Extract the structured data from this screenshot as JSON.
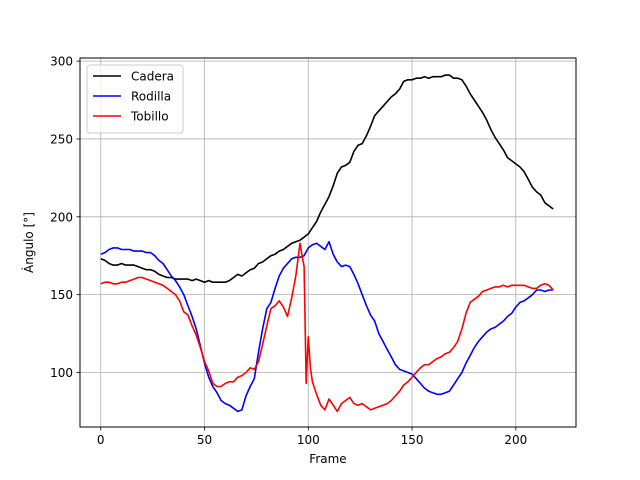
{
  "chart_data": {
    "type": "line",
    "title": "",
    "xlabel": "Frame",
    "ylabel": "Ángulo [°]",
    "xlim": [
      -10,
      229
    ],
    "ylim": [
      65,
      302
    ],
    "xticks": [
      0,
      50,
      100,
      150,
      200
    ],
    "yticks": [
      100,
      150,
      200,
      250,
      300
    ],
    "grid": true,
    "legend_position": "top-left",
    "series": [
      {
        "name": "Cadera",
        "color": "#000000",
        "points": [
          [
            0,
            173
          ],
          [
            2,
            172
          ],
          [
            4,
            170
          ],
          [
            6,
            169
          ],
          [
            8,
            169
          ],
          [
            10,
            170
          ],
          [
            12,
            169
          ],
          [
            14,
            169
          ],
          [
            16,
            169
          ],
          [
            18,
            168
          ],
          [
            20,
            167
          ],
          [
            22,
            166
          ],
          [
            24,
            166
          ],
          [
            26,
            165
          ],
          [
            28,
            163
          ],
          [
            30,
            162
          ],
          [
            32,
            161
          ],
          [
            34,
            161
          ],
          [
            36,
            160
          ],
          [
            38,
            160
          ],
          [
            40,
            160
          ],
          [
            42,
            160
          ],
          [
            44,
            159
          ],
          [
            46,
            160
          ],
          [
            48,
            159
          ],
          [
            50,
            158
          ],
          [
            52,
            159
          ],
          [
            54,
            158
          ],
          [
            56,
            158
          ],
          [
            58,
            158
          ],
          [
            60,
            158
          ],
          [
            62,
            159
          ],
          [
            64,
            161
          ],
          [
            66,
            163
          ],
          [
            68,
            162
          ],
          [
            70,
            164
          ],
          [
            72,
            166
          ],
          [
            74,
            167
          ],
          [
            76,
            170
          ],
          [
            78,
            171
          ],
          [
            80,
            173
          ],
          [
            82,
            175
          ],
          [
            84,
            176
          ],
          [
            86,
            178
          ],
          [
            88,
            179
          ],
          [
            90,
            181
          ],
          [
            92,
            183
          ],
          [
            94,
            184
          ],
          [
            96,
            185
          ],
          [
            98,
            187
          ],
          [
            100,
            189
          ],
          [
            102,
            193
          ],
          [
            104,
            197
          ],
          [
            106,
            203
          ],
          [
            108,
            208
          ],
          [
            110,
            213
          ],
          [
            112,
            220
          ],
          [
            114,
            228
          ],
          [
            116,
            232
          ],
          [
            118,
            233
          ],
          [
            120,
            235
          ],
          [
            122,
            242
          ],
          [
            124,
            246
          ],
          [
            126,
            247
          ],
          [
            128,
            252
          ],
          [
            130,
            258
          ],
          [
            132,
            265
          ],
          [
            134,
            268
          ],
          [
            136,
            271
          ],
          [
            138,
            274
          ],
          [
            140,
            277
          ],
          [
            142,
            279
          ],
          [
            144,
            282
          ],
          [
            146,
            287
          ],
          [
            148,
            288
          ],
          [
            150,
            288
          ],
          [
            152,
            289
          ],
          [
            154,
            289
          ],
          [
            156,
            290
          ],
          [
            158,
            289
          ],
          [
            160,
            290
          ],
          [
            162,
            290
          ],
          [
            164,
            290
          ],
          [
            166,
            291
          ],
          [
            168,
            291
          ],
          [
            170,
            289
          ],
          [
            172,
            289
          ],
          [
            174,
            288
          ],
          [
            176,
            284
          ],
          [
            178,
            279
          ],
          [
            180,
            275
          ],
          [
            182,
            271
          ],
          [
            184,
            267
          ],
          [
            186,
            262
          ],
          [
            188,
            256
          ],
          [
            190,
            251
          ],
          [
            192,
            247
          ],
          [
            194,
            243
          ],
          [
            196,
            238
          ],
          [
            198,
            236
          ],
          [
            200,
            234
          ],
          [
            202,
            232
          ],
          [
            204,
            229
          ],
          [
            206,
            224
          ],
          [
            208,
            219
          ],
          [
            210,
            216
          ],
          [
            212,
            214
          ],
          [
            214,
            209
          ],
          [
            216,
            207
          ],
          [
            218,
            205
          ]
        ]
      },
      {
        "name": "Rodilla",
        "color": "#0000ff",
        "points": [
          [
            0,
            176
          ],
          [
            2,
            177
          ],
          [
            4,
            179
          ],
          [
            6,
            180
          ],
          [
            8,
            180
          ],
          [
            10,
            179
          ],
          [
            12,
            179
          ],
          [
            14,
            179
          ],
          [
            16,
            178
          ],
          [
            18,
            178
          ],
          [
            20,
            178
          ],
          [
            22,
            177
          ],
          [
            24,
            177
          ],
          [
            26,
            175
          ],
          [
            28,
            172
          ],
          [
            30,
            170
          ],
          [
            32,
            166
          ],
          [
            34,
            162
          ],
          [
            36,
            159
          ],
          [
            38,
            155
          ],
          [
            40,
            150
          ],
          [
            42,
            143
          ],
          [
            44,
            136
          ],
          [
            46,
            128
          ],
          [
            48,
            117
          ],
          [
            50,
            106
          ],
          [
            52,
            97
          ],
          [
            54,
            91
          ],
          [
            56,
            87
          ],
          [
            58,
            82
          ],
          [
            60,
            80
          ],
          [
            62,
            79
          ],
          [
            64,
            77
          ],
          [
            66,
            75
          ],
          [
            68,
            76
          ],
          [
            70,
            85
          ],
          [
            72,
            91
          ],
          [
            74,
            96
          ],
          [
            76,
            113
          ],
          [
            78,
            128
          ],
          [
            80,
            141
          ],
          [
            82,
            145
          ],
          [
            84,
            154
          ],
          [
            86,
            162
          ],
          [
            88,
            167
          ],
          [
            90,
            170
          ],
          [
            92,
            173
          ],
          [
            94,
            174
          ],
          [
            96,
            174
          ],
          [
            98,
            175
          ],
          [
            100,
            180
          ],
          [
            102,
            182
          ],
          [
            104,
            183
          ],
          [
            106,
            181
          ],
          [
            108,
            179
          ],
          [
            110,
            184
          ],
          [
            112,
            176
          ],
          [
            114,
            171
          ],
          [
            116,
            168
          ],
          [
            118,
            169
          ],
          [
            120,
            168
          ],
          [
            122,
            163
          ],
          [
            124,
            157
          ],
          [
            126,
            150
          ],
          [
            128,
            143
          ],
          [
            130,
            137
          ],
          [
            132,
            133
          ],
          [
            134,
            125
          ],
          [
            136,
            120
          ],
          [
            138,
            115
          ],
          [
            140,
            110
          ],
          [
            142,
            105
          ],
          [
            144,
            102
          ],
          [
            146,
            101
          ],
          [
            148,
            100
          ],
          [
            150,
            99
          ],
          [
            152,
            96
          ],
          [
            154,
            93
          ],
          [
            156,
            90
          ],
          [
            158,
            88
          ],
          [
            160,
            87
          ],
          [
            162,
            86
          ],
          [
            164,
            86
          ],
          [
            166,
            87
          ],
          [
            168,
            88
          ],
          [
            170,
            92
          ],
          [
            172,
            96
          ],
          [
            174,
            100
          ],
          [
            176,
            106
          ],
          [
            178,
            111
          ],
          [
            180,
            116
          ],
          [
            182,
            120
          ],
          [
            184,
            123
          ],
          [
            186,
            126
          ],
          [
            188,
            128
          ],
          [
            190,
            129
          ],
          [
            192,
            131
          ],
          [
            194,
            133
          ],
          [
            196,
            136
          ],
          [
            198,
            138
          ],
          [
            200,
            142
          ],
          [
            202,
            145
          ],
          [
            204,
            146
          ],
          [
            206,
            148
          ],
          [
            208,
            150
          ],
          [
            210,
            153
          ],
          [
            212,
            153
          ],
          [
            214,
            152
          ],
          [
            216,
            153
          ],
          [
            218,
            153
          ]
        ]
      },
      {
        "name": "Tobillo",
        "color": "#ff0000",
        "points": [
          [
            0,
            157
          ],
          [
            2,
            158
          ],
          [
            4,
            158
          ],
          [
            6,
            157
          ],
          [
            8,
            157
          ],
          [
            10,
            158
          ],
          [
            12,
            158
          ],
          [
            14,
            159
          ],
          [
            16,
            160
          ],
          [
            18,
            161
          ],
          [
            20,
            161
          ],
          [
            22,
            160
          ],
          [
            24,
            159
          ],
          [
            26,
            158
          ],
          [
            28,
            157
          ],
          [
            30,
            156
          ],
          [
            32,
            154
          ],
          [
            34,
            152
          ],
          [
            36,
            150
          ],
          [
            38,
            146
          ],
          [
            40,
            139
          ],
          [
            42,
            137
          ],
          [
            44,
            130
          ],
          [
            46,
            124
          ],
          [
            48,
            116
          ],
          [
            50,
            107
          ],
          [
            52,
            101
          ],
          [
            54,
            93
          ],
          [
            56,
            91
          ],
          [
            58,
            91
          ],
          [
            60,
            93
          ],
          [
            62,
            94
          ],
          [
            64,
            94
          ],
          [
            66,
            97
          ],
          [
            68,
            98
          ],
          [
            70,
            100
          ],
          [
            72,
            103
          ],
          [
            74,
            102
          ],
          [
            76,
            107
          ],
          [
            78,
            118
          ],
          [
            80,
            130
          ],
          [
            82,
            141
          ],
          [
            84,
            143
          ],
          [
            86,
            146
          ],
          [
            88,
            142
          ],
          [
            90,
            136
          ],
          [
            92,
            148
          ],
          [
            94,
            162
          ],
          [
            96,
            183
          ],
          [
            97,
            175
          ],
          [
            98,
            168
          ],
          [
            99,
            93
          ],
          [
            100,
            123
          ],
          [
            101,
            103
          ],
          [
            102,
            94
          ],
          [
            104,
            86
          ],
          [
            106,
            79
          ],
          [
            108,
            76
          ],
          [
            110,
            83
          ],
          [
            112,
            79
          ],
          [
            114,
            75
          ],
          [
            116,
            80
          ],
          [
            118,
            82
          ],
          [
            120,
            84
          ],
          [
            122,
            80
          ],
          [
            124,
            79
          ],
          [
            126,
            80
          ],
          [
            128,
            78
          ],
          [
            130,
            76
          ],
          [
            132,
            77
          ],
          [
            134,
            78
          ],
          [
            136,
            79
          ],
          [
            138,
            80
          ],
          [
            140,
            82
          ],
          [
            142,
            85
          ],
          [
            144,
            88
          ],
          [
            146,
            92
          ],
          [
            148,
            94
          ],
          [
            150,
            97
          ],
          [
            152,
            100
          ],
          [
            154,
            103
          ],
          [
            156,
            105
          ],
          [
            158,
            105
          ],
          [
            160,
            107
          ],
          [
            162,
            109
          ],
          [
            164,
            110
          ],
          [
            166,
            112
          ],
          [
            168,
            113
          ],
          [
            170,
            116
          ],
          [
            172,
            120
          ],
          [
            174,
            128
          ],
          [
            176,
            138
          ],
          [
            178,
            145
          ],
          [
            180,
            147
          ],
          [
            182,
            149
          ],
          [
            184,
            152
          ],
          [
            186,
            153
          ],
          [
            188,
            154
          ],
          [
            190,
            155
          ],
          [
            192,
            155
          ],
          [
            194,
            156
          ],
          [
            196,
            155
          ],
          [
            198,
            156
          ],
          [
            200,
            156
          ],
          [
            202,
            156
          ],
          [
            204,
            156
          ],
          [
            206,
            155
          ],
          [
            208,
            154
          ],
          [
            210,
            154
          ],
          [
            212,
            156
          ],
          [
            214,
            157
          ],
          [
            216,
            156
          ],
          [
            218,
            153
          ]
        ]
      }
    ]
  }
}
